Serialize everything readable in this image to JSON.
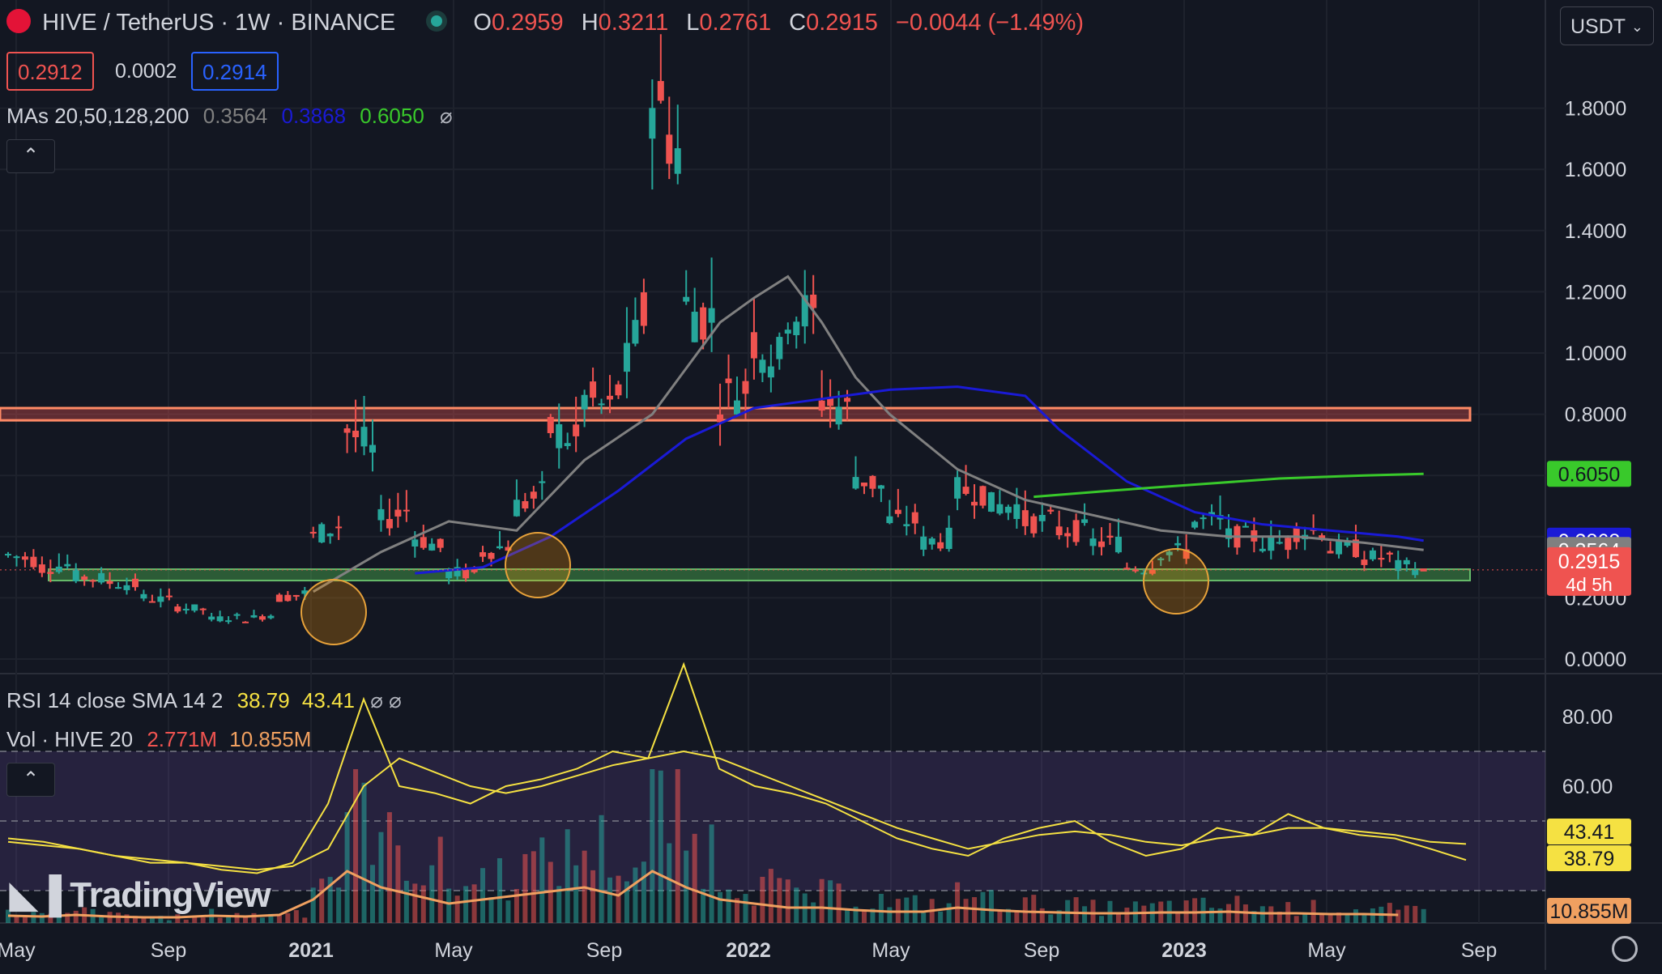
{
  "header": {
    "symbol": "HIVE / TetherUS · 1W · BINANCE",
    "o_label": "O",
    "o_value": "0.2959",
    "h_label": "H",
    "h_value": "0.3211",
    "l_label": "L",
    "l_value": "0.2761",
    "c_label": "C",
    "c_value": "0.2915",
    "change": "−0.0044 (−1.49%)",
    "bid": "0.2912",
    "spread": "0.0002",
    "ask": "0.2914",
    "ma_label": "MAs 20,50,128,200",
    "ma1": "0.3564",
    "ma2": "0.3868",
    "ma3": "0.6050",
    "currency_select": "USDT"
  },
  "indicators": {
    "rsi_label": "RSI 14 close SMA 14 2",
    "rsi_value": "38.79",
    "rsi_sma": "43.41",
    "vol_label": "Vol · HIVE 20",
    "vol_value": "2.771M",
    "vol_ma": "10.855M"
  },
  "watermark": "TradingView",
  "price_badges": {
    "ma3": "0.6050",
    "ma2": "0.3868",
    "ma1": "0.3564",
    "last": "0.2915",
    "countdown": "4d 5h",
    "rsi_sma": "43.41",
    "rsi": "38.79",
    "vol_ma": "10.855M"
  },
  "colors": {
    "up": "#26a69a",
    "down": "#ef5350",
    "ma20": "#808080",
    "ma50": "#1a1ad6",
    "ma200": "#39c92b",
    "rsi": "#f5e142",
    "volma": "#f0a060"
  },
  "chart_data": [
    {
      "type": "candlestick",
      "title": "HIVE / TetherUS · 1W · BINANCE",
      "x_ticks": [
        "May",
        "Sep",
        "2021",
        "May",
        "Sep",
        "2022",
        "May",
        "Sep",
        "2023",
        "May",
        "Sep"
      ],
      "y_ticks": [
        "0.0000",
        "0.2000",
        "0.4000",
        "0.6000",
        "0.8000",
        "1.0000",
        "1.2000",
        "1.4000",
        "1.6000",
        "1.8000"
      ],
      "ylim": [
        0,
        1.9
      ],
      "series": [
        {
          "name": "Price",
          "points": [
            [
              0,
              0.4,
              0.34
            ],
            [
              4,
              0.32,
              0.3
            ],
            [
              8,
              0.31,
              0.27
            ],
            [
              12,
              0.26,
              0.25
            ],
            [
              16,
              0.24,
              0.2
            ],
            [
              20,
              0.19,
              0.17
            ],
            [
              24,
              0.16,
              0.13
            ],
            [
              28,
              0.14,
              0.13
            ],
            [
              32,
              0.15,
              0.2
            ],
            [
              36,
              0.22,
              0.4
            ],
            [
              40,
              0.45,
              0.75
            ],
            [
              44,
              0.65,
              0.45
            ],
            [
              48,
              0.5,
              0.4
            ],
            [
              52,
              0.35,
              0.28
            ],
            [
              56,
              0.28,
              0.35
            ],
            [
              60,
              0.38,
              0.5
            ],
            [
              64,
              0.55,
              0.75
            ],
            [
              68,
              0.7,
              0.85
            ],
            [
              72,
              0.8,
              0.88
            ],
            [
              76,
              1.2,
              1.85
            ],
            [
              80,
              1.6,
              1.15
            ],
            [
              84,
              1.1,
              0.85
            ],
            [
              88,
              0.9,
              1.05
            ],
            [
              92,
              0.95,
              1.15
            ],
            [
              96,
              1.1,
              0.85
            ],
            [
              100,
              0.8,
              0.6
            ],
            [
              104,
              0.55,
              0.45
            ],
            [
              108,
              0.45,
              0.38
            ],
            [
              112,
              0.4,
              0.55
            ],
            [
              116,
              0.55,
              0.5
            ],
            [
              120,
              0.5,
              0.45
            ],
            [
              124,
              0.45,
              0.42
            ],
            [
              128,
              0.42,
              0.38
            ],
            [
              132,
              0.38,
              0.3
            ],
            [
              136,
              0.3,
              0.35
            ],
            [
              140,
              0.35,
              0.45
            ],
            [
              144,
              0.45,
              0.4
            ],
            [
              148,
              0.4,
              0.38
            ],
            [
              152,
              0.38,
              0.42
            ],
            [
              156,
              0.42,
              0.36
            ],
            [
              160,
              0.36,
              0.33
            ],
            [
              164,
              0.33,
              0.3
            ],
            [
              167,
              0.3,
              0.2915
            ]
          ]
        },
        {
          "name": "MA20",
          "points": [
            [
              36,
              0.22
            ],
            [
              44,
              0.35
            ],
            [
              52,
              0.45
            ],
            [
              60,
              0.42
            ],
            [
              68,
              0.65
            ],
            [
              76,
              0.8
            ],
            [
              84,
              1.1
            ],
            [
              88,
              1.18
            ],
            [
              92,
              1.25
            ],
            [
              96,
              1.1
            ],
            [
              100,
              0.92
            ],
            [
              104,
              0.8
            ],
            [
              112,
              0.62
            ],
            [
              120,
              0.52
            ],
            [
              128,
              0.47
            ],
            [
              136,
              0.42
            ],
            [
              144,
              0.4
            ],
            [
              152,
              0.4
            ],
            [
              160,
              0.38
            ],
            [
              167,
              0.3564
            ]
          ]
        },
        {
          "name": "MA50",
          "points": [
            [
              48,
              0.28
            ],
            [
              56,
              0.3
            ],
            [
              64,
              0.4
            ],
            [
              72,
              0.55
            ],
            [
              80,
              0.72
            ],
            [
              88,
              0.82
            ],
            [
              96,
              0.85
            ],
            [
              104,
              0.88
            ],
            [
              112,
              0.89
            ],
            [
              120,
              0.86
            ],
            [
              124,
              0.75
            ],
            [
              132,
              0.58
            ],
            [
              140,
              0.48
            ],
            [
              148,
              0.44
            ],
            [
              156,
              0.42
            ],
            [
              164,
              0.4
            ],
            [
              167,
              0.3868
            ]
          ]
        },
        {
          "name": "MA200",
          "points": [
            [
              121,
              0.53
            ],
            [
              130,
              0.55
            ],
            [
              140,
              0.57
            ],
            [
              150,
              0.59
            ],
            [
              160,
              0.6
            ],
            [
              167,
              0.605
            ]
          ]
        }
      ],
      "zones": [
        {
          "low": 0.78,
          "high": 0.82
        },
        {
          "low": 0.28,
          "high": 0.32
        }
      ]
    },
    {
      "type": "line",
      "title": "RSI 14 close SMA 14 2",
      "y_ticks": [
        "40.00",
        "60.00",
        "80.00"
      ],
      "ylim": [
        20,
        100
      ],
      "series": [
        {
          "name": "RSI",
          "values": [
            45,
            44,
            42,
            40,
            38,
            38,
            36,
            35,
            38,
            55,
            85,
            60,
            58,
            55,
            60,
            62,
            65,
            70,
            68,
            95,
            65,
            60,
            58,
            55,
            50,
            45,
            42,
            40,
            45,
            48,
            50,
            44,
            40,
            42,
            48,
            46,
            52,
            48,
            46,
            45,
            42,
            38.79
          ]
        },
        {
          "name": "SMA",
          "values": [
            44,
            43,
            42,
            40,
            39,
            38,
            37,
            36,
            37,
            42,
            60,
            68,
            64,
            60,
            58,
            60,
            63,
            66,
            68,
            70,
            68,
            64,
            60,
            56,
            52,
            48,
            45,
            42,
            44,
            46,
            47,
            46,
            44,
            43,
            45,
            46,
            48,
            48,
            47,
            46,
            44,
            43.41
          ]
        }
      ]
    },
    {
      "type": "bar",
      "title": "Vol · HIVE 20",
      "series": [
        {
          "name": "Vol",
          "values": [
            0.5,
            0.4,
            0.6,
            0.4,
            0.3,
            0.3,
            0.5,
            0.4,
            0.6,
            2.5,
            6.0,
            4.0,
            3.0,
            2.0,
            2.5,
            3.0,
            3.5,
            4.0,
            3.0,
            6.0,
            4.0,
            2.5,
            2.0,
            1.5,
            1.5,
            1.2,
            1.0,
            1.0,
            1.5,
            1.2,
            1.0,
            0.9,
            0.8,
            0.8,
            0.9,
            0.9,
            1.0,
            0.8,
            0.8,
            0.7,
            0.7,
            0.6
          ]
        }
      ]
    }
  ]
}
